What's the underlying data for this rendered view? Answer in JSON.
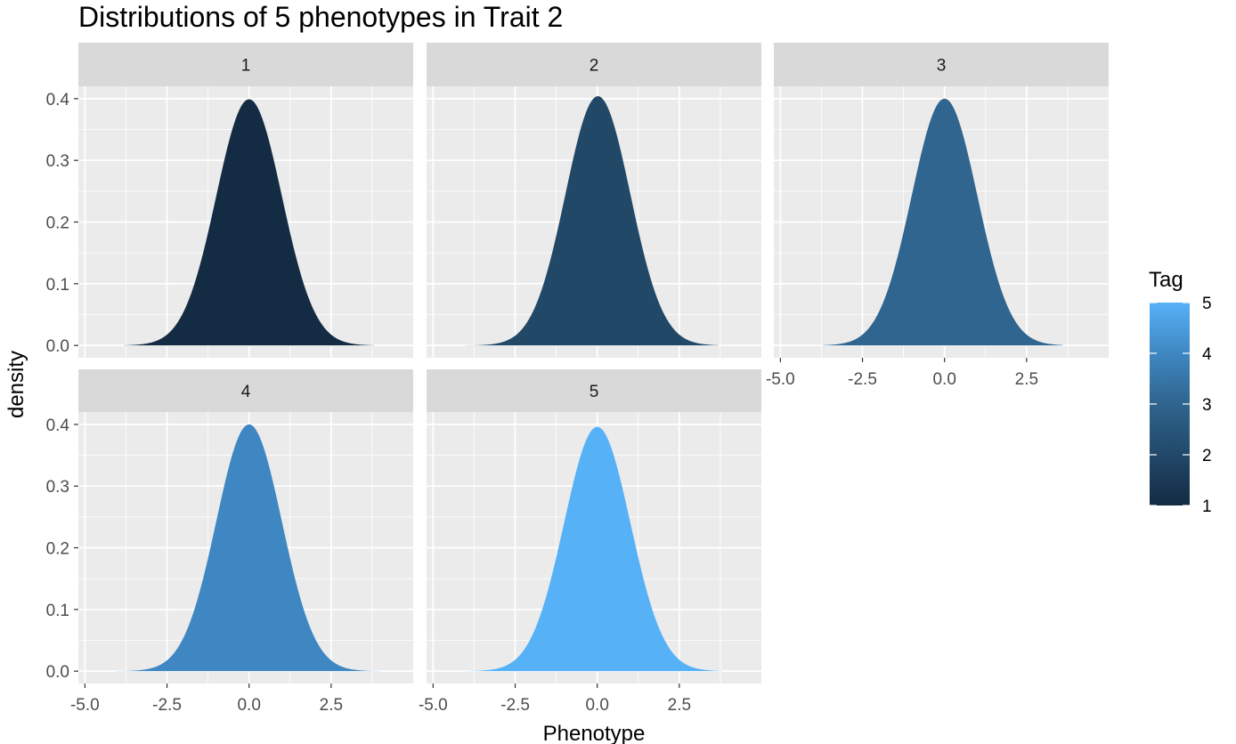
{
  "chart_data": {
    "type": "area",
    "title": "Distributions of 5 phenotypes in Trait 2",
    "xlabel": "Phenotype",
    "ylabel": "density",
    "xlim": [
      -5.2,
      5.0
    ],
    "ylim": [
      -0.02,
      0.42
    ],
    "x_ticks": [
      -5.0,
      -2.5,
      0.0,
      2.5
    ],
    "x_tick_labels": [
      "-5.0",
      "-2.5",
      "0.0",
      "2.5"
    ],
    "y_ticks": [
      0.0,
      0.1,
      0.2,
      0.3,
      0.4
    ],
    "y_tick_labels": [
      "0.0",
      "0.1",
      "0.2",
      "0.3",
      "0.4"
    ],
    "grid": true,
    "facet_layout": "wrap 3 columns, 2 rows",
    "legend": {
      "title": "Tag",
      "type": "colorbar",
      "position": "right",
      "range": [
        1,
        5
      ],
      "breaks": [
        1,
        2,
        3,
        4,
        5
      ],
      "labels": [
        "5",
        "4",
        "3",
        "2",
        "1"
      ],
      "low_color": "#132B43",
      "high_color": "#56B1F7"
    },
    "panels": [
      {
        "strip": "1",
        "tag": 1,
        "color": "#132B43",
        "peak": 0.399,
        "mean": 0.0,
        "sd": 1.0,
        "x_range": [
          -3.8,
          3.8
        ]
      },
      {
        "strip": "2",
        "tag": 2,
        "color": "#224868",
        "peak": 0.404,
        "mean": 0.02,
        "sd": 0.99,
        "x_range": [
          -4.0,
          3.7
        ]
      },
      {
        "strip": "3",
        "tag": 3,
        "color": "#2F658E",
        "peak": 0.4,
        "mean": 0.0,
        "sd": 1.0,
        "x_range": [
          -3.7,
          3.6
        ]
      },
      {
        "strip": "4",
        "tag": 4,
        "color": "#3F87C2",
        "peak": 0.4,
        "mean": 0.0,
        "sd": 1.0,
        "x_range": [
          -4.2,
          4.0
        ]
      },
      {
        "strip": "5",
        "tag": 5,
        "color": "#56B1F7",
        "peak": 0.396,
        "mean": 0.0,
        "sd": 1.01,
        "x_range": [
          -4.0,
          3.8
        ]
      }
    ]
  }
}
